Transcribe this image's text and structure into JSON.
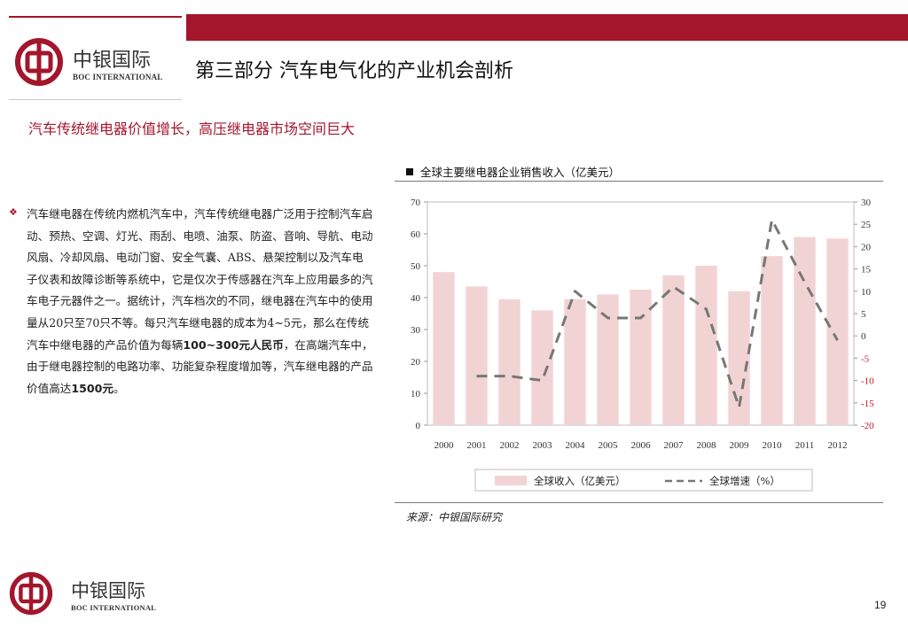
{
  "header": {
    "brand_cn": "中银国际",
    "brand_en": "BOC INTERNATIONAL",
    "page_title": "第三部分  汽车电气化的产业机会剖析"
  },
  "subtitle": "汽车传统继电器价值增长，高压继电器市场空间巨大",
  "body": {
    "bullet_glyph": "❖",
    "text_parts": [
      {
        "t": "汽车继电器在传统内燃机汽车中，汽车传统继电器广泛用于控制汽车启动、预热、空调、灯光、雨刮、电喷、油泵、防盗、音响、导航、电动风扇、冷却风扇、电动门窗、安全气囊、ABS、悬架控制以及汽车电子仪表和故障诊断等系统中，它是仅次于传感器在汽车上应用最多的汽车电子元器件之一。据统计，汽车档次的不同，继电器在汽车中的使用量从20只至70只不等。每只汽车继电器的成本为4~5元，那么在传统汽车中继电器的产品价值为每辆",
        "b": false
      },
      {
        "t": "100~300元人民币",
        "b": true
      },
      {
        "t": "，在高端汽车中，由于继电器控制的电路功率、功能复杂程度增加等，汽车继电器的产品价值高达",
        "b": false
      },
      {
        "t": "1500元",
        "b": true
      },
      {
        "t": "。",
        "b": false
      }
    ]
  },
  "chart_title": "全球主要继电器企业销售收入（亿美元）",
  "source": "来源：中银国际研究",
  "page_number": "19",
  "colors": {
    "brand_red": "#a3162c",
    "bar": "#f2d3d3",
    "dash": "#777777"
  },
  "chart_data": {
    "type": "bar",
    "categories": [
      "2000",
      "2001",
      "2002",
      "2003",
      "2004",
      "2005",
      "2006",
      "2007",
      "2008",
      "2009",
      "2010",
      "2011",
      "2012"
    ],
    "series": [
      {
        "name": "全球收入（亿美元）",
        "type": "bar",
        "axis": "left",
        "values": [
          48,
          43.5,
          39.5,
          36,
          39.5,
          41,
          42.5,
          47,
          50,
          42,
          53,
          59,
          58.5
        ]
      },
      {
        "name": "全球增速（%）",
        "type": "line",
        "style": "dashed",
        "axis": "right",
        "values": [
          null,
          -9,
          -9,
          -10,
          10,
          4,
          4,
          11,
          6,
          -16,
          26,
          12,
          -1
        ]
      }
    ],
    "left_axis": {
      "min": 0,
      "max": 70,
      "ticks": [
        "0",
        "10",
        "20",
        "30",
        "40",
        "50",
        "60",
        "70"
      ]
    },
    "right_axis": {
      "min": -20,
      "max": 30,
      "ticks": [
        "-20",
        "-15",
        "-10",
        "-5",
        "0",
        "5",
        "10",
        "15",
        "20",
        "25",
        "30"
      ],
      "negative_tick_color": "#c0182a"
    },
    "legend": {
      "bar_label": "全球收入（亿美元）",
      "line_label": "全球增速（%）",
      "position": "bottom"
    },
    "grid": false
  }
}
